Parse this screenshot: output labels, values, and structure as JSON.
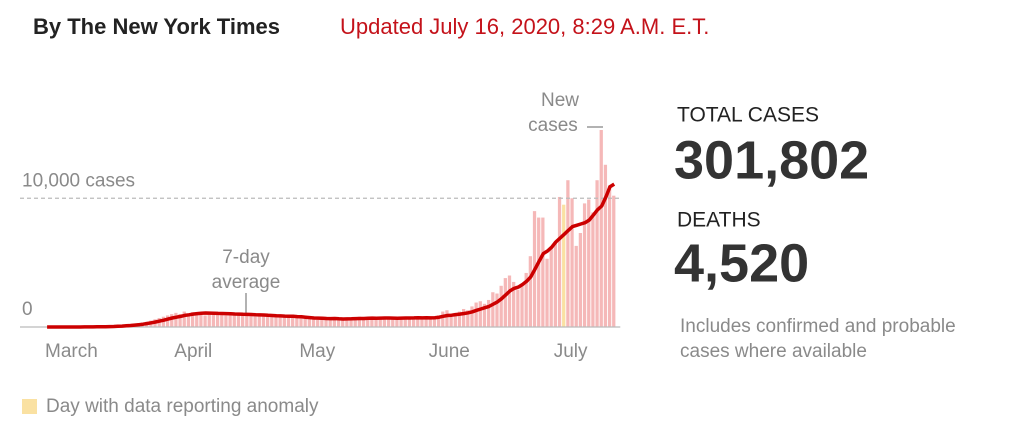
{
  "header": {
    "byline": "By The New York Times",
    "updated": "Updated July 16, 2020, 8:29 A.M. E.T."
  },
  "chart_data": {
    "type": "bar",
    "categories": [
      "March",
      null,
      null,
      null,
      null,
      null,
      null,
      null,
      null,
      null,
      null,
      null,
      null,
      null,
      null,
      null,
      null,
      null,
      null,
      null,
      null,
      null,
      null,
      null,
      null,
      null,
      null,
      null,
      null,
      null,
      null,
      "April",
      null,
      null,
      null,
      null,
      null,
      null,
      null,
      null,
      null,
      null,
      null,
      null,
      null,
      null,
      null,
      null,
      null,
      null,
      null,
      null,
      null,
      null,
      null,
      null,
      null,
      null,
      null,
      null,
      null,
      "May",
      null,
      null,
      null,
      null,
      null,
      null,
      null,
      null,
      null,
      null,
      null,
      null,
      null,
      null,
      null,
      null,
      null,
      null,
      null,
      null,
      null,
      null,
      null,
      null,
      null,
      null,
      null,
      null,
      null,
      null,
      "June",
      null,
      null,
      null,
      null,
      null,
      null,
      null,
      null,
      null,
      null,
      null,
      null,
      null,
      null,
      null,
      null,
      null,
      null,
      null,
      null,
      null,
      null,
      null,
      null,
      null,
      null,
      null,
      null,
      null,
      "July",
      null,
      null,
      null,
      null,
      null,
      null,
      null,
      null,
      null,
      null,
      null,
      null,
      null,
      null
    ],
    "series": [
      {
        "color": "#f5b8b8",
        "values": [
          0,
          0,
          0,
          0,
          1,
          2,
          3,
          5,
          5,
          8,
          10,
          15,
          20,
          30,
          40,
          50,
          60,
          80,
          110,
          150,
          200,
          250,
          300,
          350,
          400,
          500,
          600,
          700,
          800,
          900,
          1000,
          1100,
          1000,
          1200,
          1050,
          1150,
          1100,
          1000,
          900,
          1200,
          1100,
          1000,
          1050,
          900,
          1100,
          1000,
          950,
          1000,
          900,
          1000,
          800,
          950,
          1000,
          900,
          850,
          800,
          750,
          900,
          850,
          800,
          750,
          700,
          650,
          600,
          700,
          550,
          600,
          650,
          700,
          600,
          650,
          700,
          500,
          550,
          700,
          800,
          650,
          700,
          600,
          650,
          700,
          750,
          700,
          650,
          600,
          700,
          750,
          650,
          700,
          800,
          650,
          700,
          700,
          650,
          900,
          1200,
          1300,
          1000,
          1100,
          1200,
          1400,
          1300,
          1600,
          1900,
          2000,
          1800,
          2100,
          2700,
          2600,
          3200,
          3800,
          4000,
          3500,
          2900,
          3300,
          4200,
          5500,
          9000,
          8500,
          8500,
          5300,
          6100,
          6500,
          10100,
          null,
          11400,
          10000,
          6300,
          7300,
          9600,
          9900,
          8900,
          11400,
          15300,
          12600,
          11000,
          10200
        ]
      },
      {
        "name": "Day with data reporting anomaly",
        "color": "#fae1a2",
        "values": [
          null,
          null,
          null,
          null,
          null,
          null,
          null,
          null,
          null,
          null,
          null,
          null,
          null,
          null,
          null,
          null,
          null,
          null,
          null,
          null,
          null,
          null,
          null,
          null,
          null,
          null,
          null,
          null,
          null,
          null,
          null,
          null,
          null,
          null,
          null,
          null,
          null,
          null,
          null,
          null,
          null,
          null,
          null,
          null,
          null,
          null,
          null,
          null,
          null,
          null,
          null,
          null,
          null,
          null,
          null,
          null,
          null,
          null,
          null,
          null,
          null,
          null,
          null,
          null,
          null,
          null,
          null,
          null,
          null,
          null,
          null,
          null,
          null,
          null,
          null,
          null,
          null,
          null,
          null,
          null,
          null,
          null,
          null,
          null,
          null,
          null,
          null,
          null,
          null,
          null,
          null,
          null,
          null,
          null,
          null,
          null,
          null,
          null,
          null,
          null,
          null,
          null,
          null,
          null,
          null,
          null,
          null,
          null,
          null,
          null,
          null,
          null,
          null,
          null,
          null,
          null,
          null,
          null,
          null,
          null,
          null,
          null,
          null,
          null,
          9500,
          null,
          null,
          null,
          null,
          null,
          null,
          null,
          null,
          null,
          null,
          null,
          null
        ]
      }
    ],
    "average": {
      "label": [
        "7-day",
        "average"
      ],
      "color": "#cc0000",
      "values": [
        0,
        0,
        0,
        0,
        0,
        1,
        2,
        2,
        3,
        5,
        7,
        9,
        12,
        18,
        24,
        32,
        40,
        52,
        68,
        90,
        120,
        150,
        180,
        220,
        270,
        330,
        390,
        460,
        530,
        610,
        700,
        760,
        820,
        900,
        950,
        1000,
        1040,
        1070,
        1090,
        1080,
        1070,
        1060,
        1050,
        1040,
        1030,
        1010,
        1000,
        990,
        980,
        970,
        950,
        940,
        930,
        910,
        890,
        870,
        860,
        850,
        840,
        830,
        810,
        790,
        760,
        730,
        700,
        690,
        680,
        660,
        650,
        660,
        640,
        620,
        630,
        640,
        650,
        660,
        660,
        680,
        690,
        680,
        690,
        700,
        700,
        690,
        680,
        690,
        700,
        700,
        710,
        720,
        710,
        720,
        710,
        720,
        760,
        830,
        890,
        920,
        960,
        1000,
        1050,
        1100,
        1180,
        1300,
        1400,
        1500,
        1600,
        1780,
        1950,
        2200,
        2500,
        2800,
        3000,
        3100,
        3300,
        3550,
        3900,
        4500,
        5100,
        5700,
        5900,
        6200,
        6600,
        6900,
        7200,
        7500,
        7800,
        7900,
        8000,
        8100,
        8300,
        8700,
        9100,
        9400,
        10100,
        10900,
        11100
      ]
    },
    "bars_label": [
      "New",
      "cases"
    ],
    "ylim": [
      0,
      16000
    ],
    "yticks": [
      0,
      {
        "value": 10000,
        "label": "10,000 cases"
      }
    ]
  },
  "stats": {
    "cases_label": "TOTAL CASES",
    "cases": "301,802",
    "deaths_label": "DEATHS",
    "deaths": "4,520",
    "note": [
      "Includes confirmed and probable",
      "cases where available"
    ]
  }
}
